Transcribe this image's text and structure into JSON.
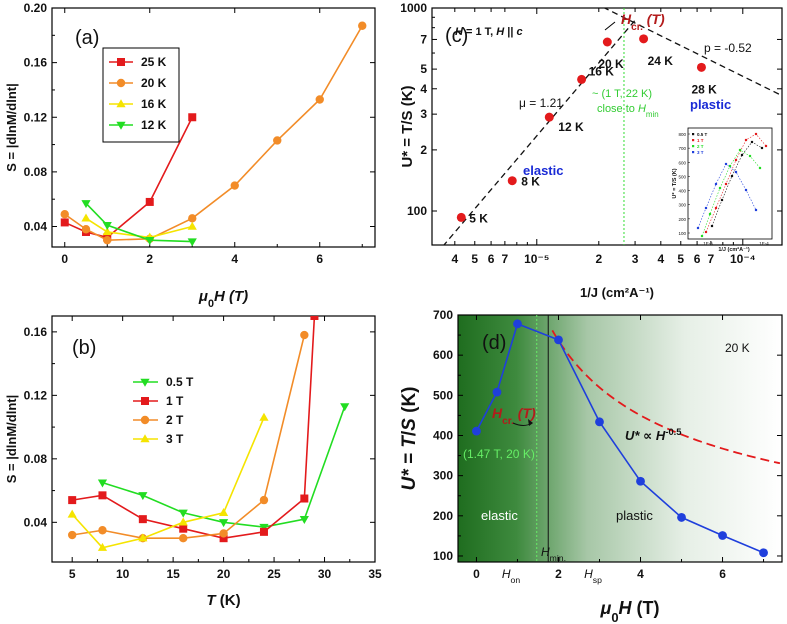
{
  "chart_data": [
    {
      "id": "a",
      "panel_label": "(a)",
      "type": "line",
      "xlabel_parts": [
        "μ",
        "0",
        "H (T)"
      ],
      "ylabel": "S = |dlnM/dlnt|",
      "xlim": [
        -0.3,
        7.3
      ],
      "ylim": [
        0.025,
        0.2
      ],
      "xticks": [
        0,
        2,
        4,
        6
      ],
      "yticks": [
        0.04,
        0.08,
        0.12,
        0.16,
        0.2
      ],
      "ytick_labels": [
        "0.04",
        "0.08",
        "0.12",
        "0.16",
        "0.20"
      ],
      "series": [
        {
          "name": "25 K",
          "color": "#e31a1c",
          "marker": "square",
          "x": [
            0,
            0.5,
            1,
            2,
            3
          ],
          "y": [
            0.043,
            0.036,
            0.032,
            0.058,
            0.12
          ]
        },
        {
          "name": "20 K",
          "color": "#f28c28",
          "marker": "circle",
          "x": [
            0,
            0.5,
            1,
            2,
            3,
            4,
            5,
            6,
            7
          ],
          "y": [
            0.049,
            0.038,
            0.03,
            0.031,
            0.046,
            0.07,
            0.103,
            0.133,
            0.187
          ]
        },
        {
          "name": "16 K",
          "color": "#f5e400",
          "marker": "triangle-up",
          "x": [
            0.5,
            1,
            2,
            3
          ],
          "y": [
            0.046,
            0.036,
            0.032,
            0.04
          ]
        },
        {
          "name": "12 K",
          "color": "#22dd22",
          "marker": "triangle-down",
          "x": [
            0.5,
            1,
            2,
            3
          ],
          "y": [
            0.057,
            0.041,
            0.03,
            0.029
          ]
        }
      ]
    },
    {
      "id": "b",
      "panel_label": "(b)",
      "type": "line",
      "xlabel_parts": [
        "",
        "",
        "T (K)"
      ],
      "ylabel": "S = |dlnM/dlnt|",
      "xlim": [
        3,
        35
      ],
      "ylim": [
        0.015,
        0.17
      ],
      "xticks": [
        5,
        10,
        15,
        20,
        25,
        30,
        35
      ],
      "yticks": [
        0.04,
        0.08,
        0.12,
        0.16
      ],
      "ytick_labels": [
        "0.04",
        "0.08",
        "0.12",
        "0.16"
      ],
      "series": [
        {
          "name": "0.5 T",
          "color": "#22dd22",
          "marker": "triangle-down",
          "x": [
            8,
            12,
            16,
            20,
            24,
            28,
            32
          ],
          "y": [
            0.065,
            0.057,
            0.046,
            0.04,
            0.037,
            0.042,
            0.113
          ]
        },
        {
          "name": "1 T",
          "color": "#e31a1c",
          "marker": "square",
          "x": [
            5,
            8,
            12,
            16,
            20,
            24,
            28,
            29
          ],
          "y": [
            0.054,
            0.057,
            0.042,
            0.036,
            0.03,
            0.034,
            0.055,
            0.17
          ]
        },
        {
          "name": "2 T",
          "color": "#f28c28",
          "marker": "circle",
          "x": [
            5,
            8,
            12,
            16,
            20,
            24,
            28
          ],
          "y": [
            0.032,
            0.035,
            0.03,
            0.03,
            0.033,
            0.054,
            0.158
          ]
        },
        {
          "name": "3 T",
          "color": "#f5e400",
          "marker": "triangle-up",
          "x": [
            5,
            8,
            12,
            16,
            20,
            24
          ],
          "y": [
            0.045,
            0.024,
            0.03,
            0.04,
            0.046,
            0.106
          ]
        }
      ]
    },
    {
      "id": "c",
      "panel_label": "(c)",
      "type": "scatter",
      "xscale": "log",
      "yscale": "log",
      "xlabel": "1/J (cm²A⁻¹)",
      "ylabel": "U* = T/S (K)",
      "xlim": [
        3.1e-06,
        0.000155
      ],
      "ylim": [
        68,
        1000
      ],
      "xtick_labels": [
        {
          "v": 4e-06,
          "t": "4"
        },
        {
          "v": 5e-06,
          "t": "5"
        },
        {
          "v": 6e-06,
          "t": "6"
        },
        {
          "v": 7e-06,
          "t": "7"
        },
        {
          "v": 1e-05,
          "t": "10⁻⁵"
        },
        {
          "v": 2e-05,
          "t": "2"
        },
        {
          "v": 3e-05,
          "t": "3"
        },
        {
          "v": 4e-05,
          "t": "4"
        },
        {
          "v": 5e-05,
          "t": "5"
        },
        {
          "v": 6e-05,
          "t": "6"
        },
        {
          "v": 7e-05,
          "t": "7"
        },
        {
          "v": 0.0001,
          "t": "10⁻⁴"
        }
      ],
      "ytick_labels": [
        {
          "v": 100,
          "t": "100"
        },
        {
          "v": 200,
          "t": "2"
        },
        {
          "v": 300,
          "t": "3"
        },
        {
          "v": 400,
          "t": "4"
        },
        {
          "v": 500,
          "t": "5"
        },
        {
          "v": 700,
          "t": "7"
        },
        {
          "v": 1000,
          "t": "1000"
        }
      ],
      "points": [
        {
          "label": "5 K",
          "x": 4.3e-06,
          "y": 93
        },
        {
          "label": "8 K",
          "x": 7.6e-06,
          "y": 141
        },
        {
          "label": "12 K",
          "x": 1.15e-05,
          "y": 290
        },
        {
          "label": "16 K",
          "x": 1.65e-05,
          "y": 445
        },
        {
          "label": "20 K",
          "x": 2.2e-05,
          "y": 680
        },
        {
          "label": "24 K",
          "x": 3.3e-05,
          "y": 705
        },
        {
          "label": "28 K",
          "x": 6.3e-05,
          "y": 510
        }
      ],
      "fit_elastic": {
        "mu": "μ = 1.21",
        "x": [
          3.5e-06,
          3e-05
        ],
        "y": [
          67,
          870
        ]
      },
      "fit_plastic": {
        "p": "p = -0.52",
        "x": [
          1.9e-05,
          0.000155
        ],
        "y": [
          1060,
          370
        ]
      },
      "vline_x": 2.65e-05,
      "annotations": {
        "condition": "H = 1 T, H || c",
        "hcr": "H",
        "hcr_sub": "cr.",
        "hcr_tail": "(T)",
        "green_line1": "~ (1 T, 22 K)",
        "green_line2": "close to ",
        "green_h": "H",
        "green_sub": "min",
        "elastic": "elastic",
        "plastic": "plastic"
      },
      "inset": {
        "ylabel": "U* = T/S (K)",
        "xlabel": "1/J (cm²A⁻¹)",
        "ytick_labels": [
          "100",
          "200",
          "300",
          "400",
          "500",
          "600",
          "700",
          "800"
        ],
        "xtick_labels": [
          "1E-5",
          "1E-4"
        ],
        "legend": [
          {
            "name": "0.5 T",
            "color": "#111111"
          },
          {
            "name": "1 T",
            "color": "#e31a1c"
          },
          {
            "name": "2 T",
            "color": "#22dd22"
          },
          {
            "name": "3 T",
            "color": "#1f3fdc"
          }
        ]
      }
    },
    {
      "id": "d",
      "panel_label": "(d)",
      "type": "line",
      "xlabel_parts": [
        "μ",
        "0",
        "H (T)"
      ],
      "ylabel": "U* = T/S (K)",
      "xlim": [
        -0.45,
        7.45
      ],
      "ylim": [
        85,
        700
      ],
      "xticks": [
        0,
        2,
        4,
        6
      ],
      "yticks": [
        100,
        200,
        300,
        400,
        500,
        600,
        700
      ],
      "series": [
        {
          "name": "U*",
          "color": "#1f3fdc",
          "marker": "circle",
          "x": [
            0,
            0.5,
            1,
            2,
            3,
            4,
            5,
            6,
            7
          ],
          "y": [
            411,
            508,
            678,
            638,
            434,
            286,
            196,
            151,
            108
          ]
        }
      ],
      "fit": {
        "label_parts": [
          "U* ∝ H",
          "-0.5"
        ],
        "x_start": 1.85,
        "x_end": 7.4,
        "coef": 900
      },
      "vline_green_x": 1.47,
      "vline_black_x": 1.75,
      "temperature": "20 K",
      "region_left": "elastic",
      "region_right": "plastic",
      "hcr_parts": [
        "H",
        "cr.",
        "(T)"
      ],
      "hcr_point": "(1.47 T, 20 K)",
      "hmin_parts": [
        "H",
        "min."
      ],
      "hon_parts": [
        "H",
        "on"
      ],
      "hsp_parts": [
        "H",
        "sp"
      ]
    }
  ]
}
